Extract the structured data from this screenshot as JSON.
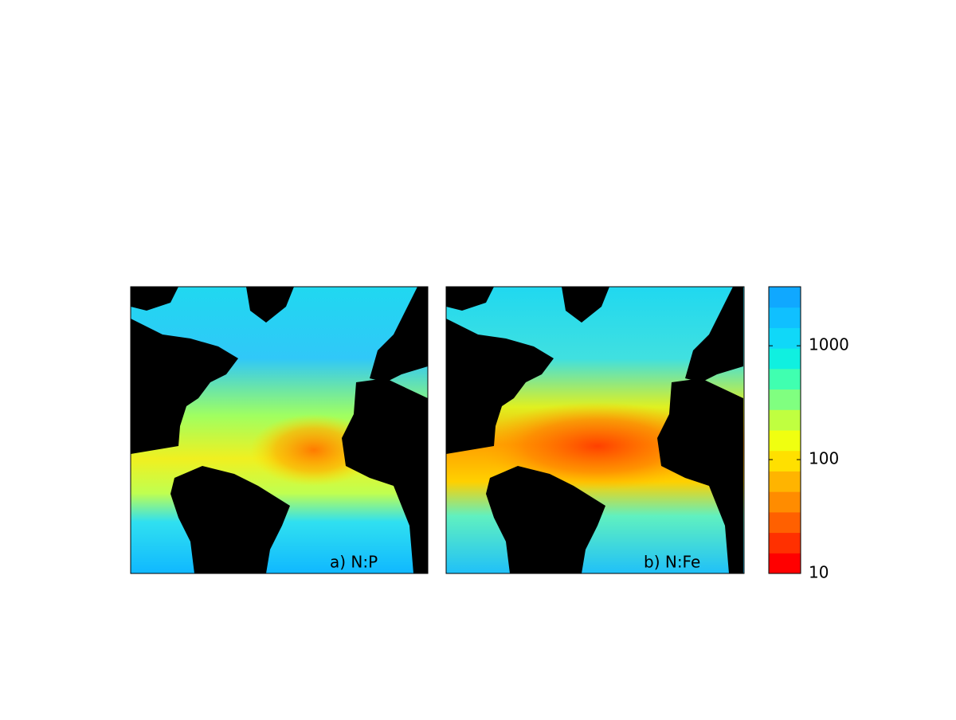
{
  "panels": [
    {
      "label": "a) N:P"
    },
    {
      "label": "b) N:Fe"
    }
  ],
  "colorbar": {
    "scale": "log",
    "lim": [
      10,
      3300
    ],
    "ticks": [
      10,
      100,
      1000
    ],
    "colors": [
      "#ff0000",
      "#ff3000",
      "#ff6000",
      "#ff8c00",
      "#ffb400",
      "#ffe000",
      "#f0ff10",
      "#c0ff40",
      "#80ff80",
      "#40ffb0",
      "#10f0e0",
      "#10d8f8",
      "#10c0ff",
      "#10a8ff"
    ]
  }
}
